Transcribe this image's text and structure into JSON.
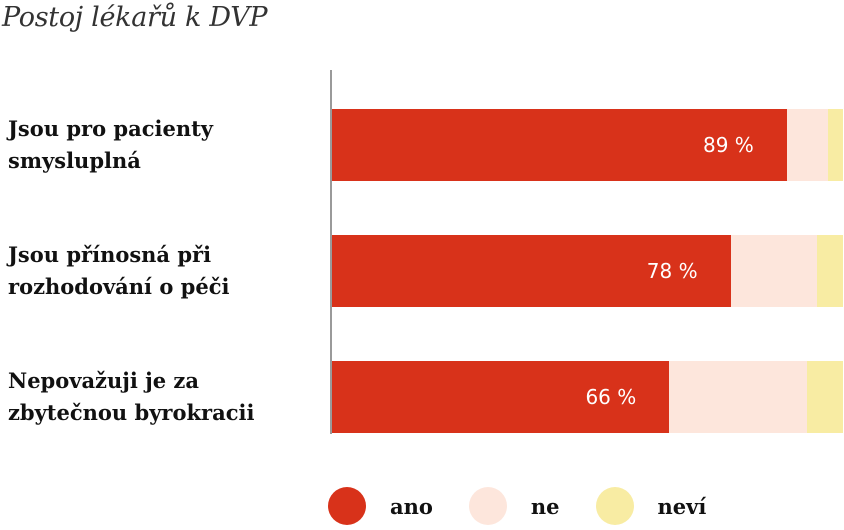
{
  "chart_data": {
    "type": "bar",
    "orientation": "horizontal",
    "stacked": true,
    "title": "Postoj lékařů k DVP",
    "categories": [
      "Jsou pro pacienty smysluplná",
      "Jsou přínosná při rozhodování o péči",
      "Nepovažuji je za zbytečnou byrokracii"
    ],
    "category_lines": [
      [
        "Jsou pro pacienty",
        "smysluplná"
      ],
      [
        "Jsou přínosná při",
        "rozhodování o péči"
      ],
      [
        "Nepovažuji je za",
        "zbytečnou byrokracii"
      ]
    ],
    "series": [
      {
        "name": "ano",
        "values": [
          89,
          78,
          66
        ],
        "labels": [
          "89 %",
          "78 %",
          "66 %"
        ],
        "color": "#d8321a"
      },
      {
        "name": "ne",
        "values": [
          8,
          17,
          27
        ],
        "color": "#fde6dc"
      },
      {
        "name": "neví",
        "values": [
          3,
          5,
          7
        ],
        "color": "#f8eca3"
      }
    ],
    "xlim": [
      0,
      100
    ],
    "grid": false,
    "legend_position": "bottom"
  }
}
